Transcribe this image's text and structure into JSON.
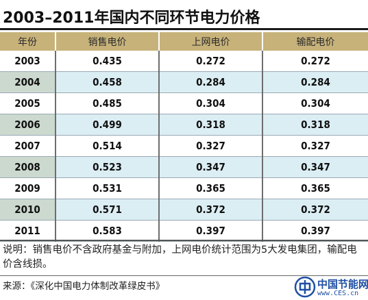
{
  "title": "2003–2011年国内不同环节电力价格",
  "table": {
    "headers": [
      "年份",
      "销售电价",
      "上网电价",
      "输配电价"
    ],
    "rows": [
      [
        "2003",
        "0.435",
        "0.272",
        "0.272"
      ],
      [
        "2004",
        "0.458",
        "0.284",
        "0.284"
      ],
      [
        "2005",
        "0.485",
        "0.304",
        "0.304"
      ],
      [
        "2006",
        "0.499",
        "0.318",
        "0.318"
      ],
      [
        "2007",
        "0.514",
        "0.327",
        "0.327"
      ],
      [
        "2008",
        "0.523",
        "0.347",
        "0.347"
      ],
      [
        "2009",
        "0.531",
        "0.365",
        "0.365"
      ],
      [
        "2010",
        "0.571",
        "0.372",
        "0.372"
      ],
      [
        "2011",
        "0.583",
        "0.397",
        "0.397"
      ]
    ]
  },
  "note": "说明：销售电价不含政府基金与附加，上网电价统计范围为5大发电集团，输配电价含线损。",
  "source": "来源：《深化中国电力体制改革绿皮书》",
  "logo": {
    "name": "中国节能网",
    "url": "www.CES.cn",
    "icon": "ces-logo-icon"
  },
  "colors": {
    "header_bg": "#c7b27a",
    "row_alt_bg": "#dbeef4",
    "year_alt_bg": "#cbd9cf",
    "brand_blue": "#1f4fa3"
  }
}
